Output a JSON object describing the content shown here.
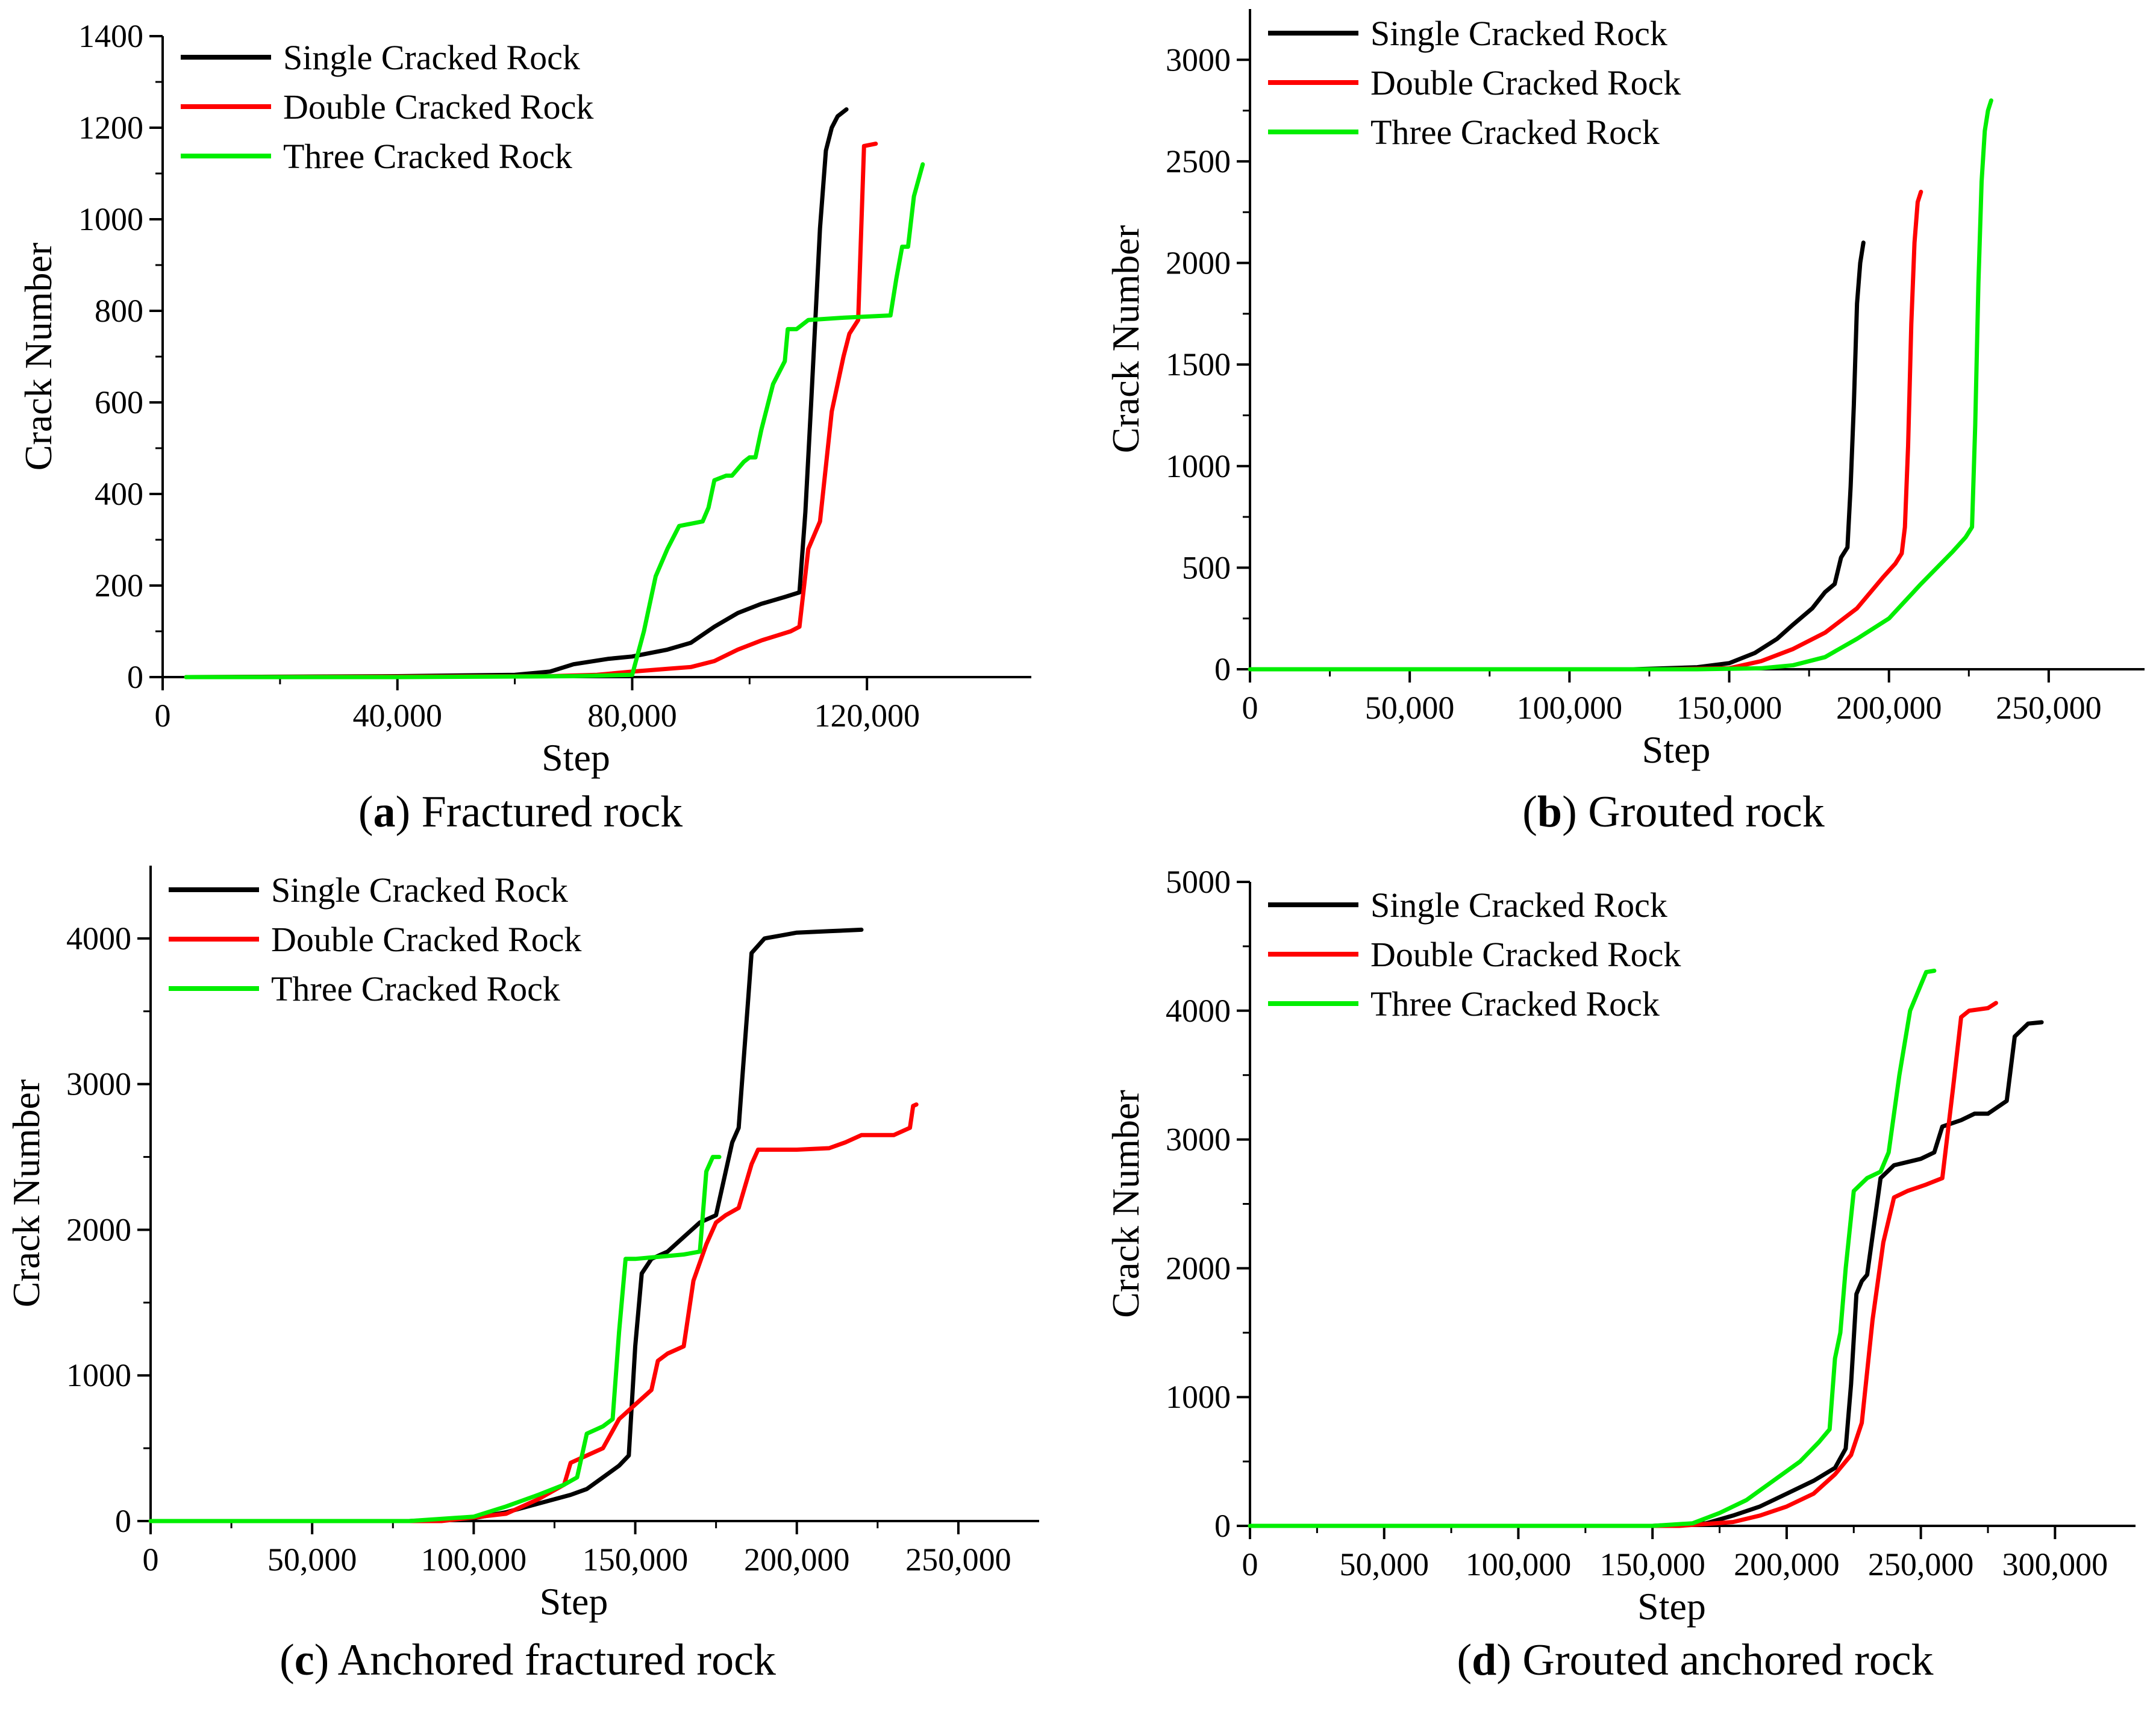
{
  "figure": {
    "series_colors": {
      "Single Cracked Rock": "#000000",
      "Double Cracked Rock": "#ff0000",
      "Three Cracked Rock": "#00ee00"
    }
  },
  "chart_data": [
    {
      "id": "a",
      "type": "line",
      "caption_letter": "a",
      "caption_text": "Fractured rock",
      "xlabel": "Step",
      "ylabel": "Crack Number",
      "xlim": [
        0,
        148000
      ],
      "ylim": [
        0,
        1400
      ],
      "xticks": [
        0,
        40000,
        80000,
        120000
      ],
      "xtick_labels": [
        "0",
        "40,000",
        "80,000",
        "120,000"
      ],
      "yticks": [
        0,
        200,
        400,
        600,
        800,
        1000,
        1200,
        1400
      ],
      "ytick_labels": [
        "0",
        "200",
        "400",
        "600",
        "800",
        "1000",
        "1200",
        "1400"
      ],
      "legend": "top-left",
      "series": [
        {
          "name": "Single Cracked Rock",
          "color": "#000000",
          "x": [
            4000,
            40000,
            60000,
            66000,
            70000,
            76000,
            80000,
            86000,
            90000,
            94000,
            98000,
            102000,
            106000,
            108500,
            109500,
            110500,
            112000,
            113000,
            114000,
            115000,
            116500
          ],
          "y": [
            0,
            2,
            5,
            12,
            28,
            40,
            45,
            60,
            75,
            110,
            140,
            160,
            175,
            185,
            360,
            600,
            980,
            1150,
            1200,
            1225,
            1240
          ]
        },
        {
          "name": "Double Cracked Rock",
          "color": "#ff0000",
          "x": [
            4000,
            40000,
            66000,
            74000,
            80000,
            86000,
            90000,
            94000,
            98000,
            102000,
            107000,
            108500,
            110000,
            112000,
            114000,
            116000,
            117000,
            118500,
            119500,
            121500
          ],
          "y": [
            0,
            1,
            2,
            5,
            12,
            18,
            22,
            35,
            60,
            80,
            100,
            110,
            280,
            340,
            580,
            700,
            750,
            780,
            1160,
            1165
          ]
        },
        {
          "name": "Three Cracked Rock",
          "color": "#00ee00",
          "x": [
            4000,
            40000,
            70000,
            80000,
            82000,
            84000,
            86000,
            88000,
            92000,
            93000,
            94000,
            96000,
            97000,
            99000,
            100000,
            101000,
            102000,
            104000,
            106000,
            106500,
            108000,
            110000,
            116000,
            124000,
            125000,
            126000,
            127000,
            128000,
            129500
          ],
          "y": [
            0,
            0,
            2,
            5,
            100,
            220,
            280,
            330,
            340,
            370,
            430,
            440,
            440,
            470,
            480,
            480,
            540,
            640,
            690,
            760,
            760,
            780,
            785,
            790,
            870,
            940,
            940,
            1050,
            1120
          ]
        }
      ]
    },
    {
      "id": "b",
      "type": "line",
      "caption_letter": "b",
      "caption_text": "Grouted rock",
      "xlabel": "Step",
      "ylabel": "Crack Number",
      "xlim": [
        0,
        280000
      ],
      "ylim": [
        0,
        3250
      ],
      "xticks": [
        0,
        50000,
        100000,
        150000,
        200000,
        250000
      ],
      "xtick_labels": [
        "0",
        "50,000",
        "100,000",
        "150,000",
        "200,000",
        "250,000"
      ],
      "yticks": [
        0,
        500,
        1000,
        1500,
        2000,
        2500,
        3000
      ],
      "ytick_labels": [
        "0",
        "500",
        "1000",
        "1500",
        "2000",
        "2500",
        "3000"
      ],
      "legend": "top-left",
      "series": [
        {
          "name": "Single Cracked Rock",
          "color": "#000000",
          "x": [
            0,
            120000,
            140000,
            150000,
            158000,
            165000,
            170000,
            176000,
            180000,
            183000,
            185000,
            187000,
            188000,
            189000,
            190000,
            191000,
            192000
          ],
          "y": [
            0,
            0,
            10,
            30,
            80,
            150,
            220,
            300,
            380,
            420,
            550,
            600,
            900,
            1300,
            1800,
            2000,
            2100
          ]
        },
        {
          "name": "Double Cracked Rock",
          "color": "#ff0000",
          "x": [
            0,
            130000,
            150000,
            160000,
            170000,
            180000,
            190000,
            198000,
            202000,
            204000,
            205000,
            206000,
            207000,
            208000,
            209000,
            210000
          ],
          "y": [
            0,
            0,
            5,
            40,
            100,
            180,
            300,
            450,
            520,
            570,
            700,
            1100,
            1700,
            2100,
            2300,
            2350
          ]
        },
        {
          "name": "Three Cracked Rock",
          "color": "#00ee00",
          "x": [
            0,
            140000,
            160000,
            170000,
            180000,
            190000,
            200000,
            210000,
            215000,
            220000,
            224000,
            226000,
            227000,
            228000,
            229000,
            230000,
            231000,
            232000
          ],
          "y": [
            0,
            0,
            5,
            20,
            60,
            150,
            250,
            420,
            500,
            580,
            650,
            700,
            1200,
            1900,
            2400,
            2650,
            2750,
            2800
          ]
        }
      ]
    },
    {
      "id": "c",
      "type": "line",
      "caption_letter": "c",
      "caption_text": "Anchored fractured rock",
      "xlabel": "Step",
      "ylabel": "Crack Number",
      "xlim": [
        0,
        275000
      ],
      "ylim": [
        0,
        4500
      ],
      "xticks": [
        0,
        50000,
        100000,
        150000,
        200000,
        250000
      ],
      "xtick_labels": [
        "0",
        "50,000",
        "100,000",
        "150,000",
        "200,000",
        "250,000"
      ],
      "yticks": [
        0,
        1000,
        2000,
        3000,
        4000
      ],
      "ytick_labels": [
        "0",
        "1000",
        "2000",
        "3000",
        "4000"
      ],
      "legend": "top-left",
      "series": [
        {
          "name": "Single Cracked Rock",
          "color": "#000000",
          "x": [
            0,
            80000,
            100000,
            110000,
            120000,
            130000,
            135000,
            140000,
            145000,
            148000,
            150000,
            152000,
            155000,
            160000,
            165000,
            170000,
            175000,
            178000,
            180000,
            182000,
            183000,
            185000,
            186000,
            190000,
            195000,
            200000,
            210000,
            220000
          ],
          "y": [
            0,
            0,
            20,
            60,
            120,
            180,
            220,
            300,
            380,
            450,
            1200,
            1700,
            1800,
            1850,
            1950,
            2050,
            2100,
            2400,
            2600,
            2700,
            3000,
            3600,
            3900,
            4000,
            4020,
            4040,
            4050,
            4060
          ]
        },
        {
          "name": "Double Cracked Rock",
          "color": "#ff0000",
          "x": [
            0,
            90000,
            110000,
            120000,
            128000,
            130000,
            135000,
            140000,
            145000,
            150000,
            155000,
            157000,
            160000,
            165000,
            168000,
            172000,
            175000,
            178000,
            182000,
            186000,
            188000,
            200000,
            210000,
            215000,
            220000,
            230000,
            235000,
            236000,
            237000
          ],
          "y": [
            0,
            0,
            50,
            150,
            250,
            400,
            450,
            500,
            700,
            800,
            900,
            1100,
            1150,
            1200,
            1650,
            1900,
            2050,
            2100,
            2150,
            2450,
            2550,
            2550,
            2560,
            2600,
            2650,
            2650,
            2700,
            2850,
            2860
          ]
        },
        {
          "name": "Three Cracked Rock",
          "color": "#00ee00",
          "x": [
            0,
            80000,
            100000,
            110000,
            120000,
            128000,
            132000,
            135000,
            140000,
            143000,
            145000,
            147000,
            150000,
            155000,
            160000,
            165000,
            170000,
            172000,
            174000,
            176000
          ],
          "y": [
            0,
            0,
            30,
            100,
            180,
            250,
            300,
            600,
            650,
            700,
            1300,
            1800,
            1800,
            1810,
            1820,
            1830,
            1850,
            2400,
            2500,
            2500
          ]
        }
      ]
    },
    {
      "id": "d",
      "type": "line",
      "caption_letter": "d",
      "caption_text": "Grouted anchored rock",
      "xlabel": "Step",
      "ylabel": "Crack Number",
      "xlim": [
        0,
        330000
      ],
      "ylim": [
        0,
        5000
      ],
      "xticks": [
        0,
        50000,
        100000,
        150000,
        200000,
        250000,
        300000
      ],
      "xtick_labels": [
        "0",
        "50,000",
        "100,000",
        "150,000",
        "200,000",
        "250,000",
        "300,000"
      ],
      "yticks": [
        0,
        1000,
        2000,
        3000,
        4000,
        5000
      ],
      "ytick_labels": [
        "0",
        "1000",
        "2000",
        "3000",
        "4000",
        "5000"
      ],
      "legend": "top-left",
      "series": [
        {
          "name": "Single Cracked Rock",
          "color": "#000000",
          "x": [
            0,
            150000,
            170000,
            180000,
            190000,
            200000,
            210000,
            218000,
            222000,
            224000,
            226000,
            228000,
            230000,
            235000,
            240000,
            250000,
            255000,
            258000,
            265000,
            270000,
            275000,
            282000,
            285000,
            290000,
            295000
          ],
          "y": [
            0,
            0,
            20,
            80,
            150,
            250,
            350,
            450,
            600,
            1100,
            1800,
            1900,
            1950,
            2700,
            2800,
            2850,
            2900,
            3100,
            3150,
            3200,
            3200,
            3300,
            3800,
            3900,
            3910
          ]
        },
        {
          "name": "Double Cracked Rock",
          "color": "#ff0000",
          "x": [
            0,
            160000,
            180000,
            190000,
            200000,
            210000,
            218000,
            224000,
            228000,
            232000,
            236000,
            240000,
            245000,
            252000,
            258000,
            262000,
            265000,
            268000,
            275000,
            278000
          ],
          "y": [
            0,
            0,
            30,
            80,
            150,
            250,
            400,
            550,
            800,
            1600,
            2200,
            2550,
            2600,
            2650,
            2700,
            3400,
            3950,
            4000,
            4020,
            4060
          ]
        },
        {
          "name": "Three Cracked Rock",
          "color": "#00ee00",
          "x": [
            0,
            150000,
            165000,
            175000,
            185000,
            195000,
            205000,
            212000,
            216000,
            218000,
            220000,
            222000,
            225000,
            230000,
            235000,
            238000,
            242000,
            246000,
            250000,
            252000,
            255000
          ],
          "y": [
            0,
            0,
            20,
            100,
            200,
            350,
            500,
            650,
            750,
            1300,
            1500,
            2000,
            2600,
            2700,
            2750,
            2900,
            3500,
            4000,
            4200,
            4300,
            4310
          ]
        }
      ]
    }
  ]
}
